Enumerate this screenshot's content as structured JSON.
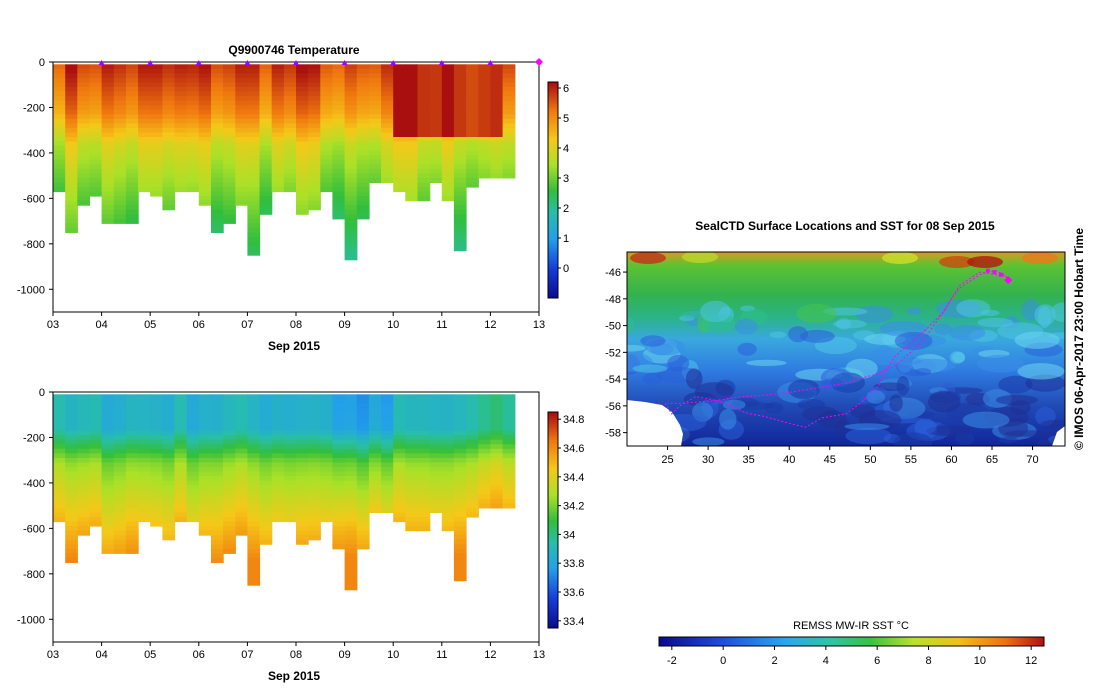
{
  "chart_data": [
    {
      "type": "heatmap",
      "title": "Q9900746  Temperature",
      "xlabel": "Sep 2015",
      "ylabel": "",
      "x_range": [
        3,
        13
      ],
      "x_ticks": [
        "03",
        "04",
        "05",
        "06",
        "07",
        "08",
        "09",
        "10",
        "11",
        "12",
        "13"
      ],
      "y_range": [
        -1100,
        0
      ],
      "y_ticks": [
        0,
        -200,
        -400,
        -600,
        -800,
        -1000
      ],
      "y_tick_labels": [
        "0",
        "-200",
        "-400",
        "-600",
        "-800",
        "-1000"
      ],
      "colorbar": {
        "min": -1,
        "max": 6.2,
        "ticks": [
          0,
          1,
          2,
          3,
          4,
          5,
          6
        ],
        "tick_labels": [
          "0",
          "1",
          "2",
          "3",
          "4",
          "5",
          "6"
        ]
      },
      "profile_times": [
        3.0,
        3.25,
        3.5,
        3.75,
        4.0,
        4.25,
        4.5,
        4.75,
        5.0,
        5.25,
        5.5,
        5.75,
        6.0,
        6.25,
        6.5,
        6.75,
        7.0,
        7.25,
        7.5,
        7.75,
        8.0,
        8.25,
        8.5,
        8.75,
        9.0,
        9.25,
        9.5,
        9.75,
        10.0,
        10.25,
        10.5,
        10.75,
        11.0,
        11.25,
        11.5,
        11.75,
        12.0,
        12.25
      ],
      "profile_bottom_depths": [
        -570,
        -740,
        -620,
        -590,
        -700,
        -700,
        -705,
        -560,
        -580,
        -650,
        -560,
        -570,
        -620,
        -740,
        -700,
        -620,
        -835,
        -660,
        -570,
        -570,
        -660,
        -650,
        -570,
        -690,
        -870,
        -690,
        -530,
        -520,
        -560,
        -600,
        -600,
        -530,
        -600,
        -820,
        -550,
        -510,
        -510,
        -510
      ],
      "surface_markers": [
        4,
        5,
        6,
        7,
        8,
        9,
        10,
        11,
        12,
        13
      ],
      "surface_marker_times": [
        4,
        5,
        6,
        7,
        8,
        9,
        10,
        11,
        12
      ],
      "surface_marker_last": 13
    },
    {
      "type": "heatmap",
      "title": "",
      "xlabel": "Sep 2015",
      "ylabel": "",
      "x_range": [
        3,
        13
      ],
      "x_ticks": [
        "03",
        "04",
        "05",
        "06",
        "07",
        "08",
        "09",
        "10",
        "11",
        "12",
        "13"
      ],
      "y_range": [
        -1100,
        0
      ],
      "y_ticks": [
        0,
        -200,
        -400,
        -600,
        -800,
        -1000
      ],
      "y_tick_labels": [
        "0",
        "-200",
        "-400",
        "-600",
        "-800",
        "-1000"
      ],
      "colorbar": {
        "min": 33.35,
        "max": 34.85,
        "ticks": [
          33.4,
          33.6,
          33.8,
          34,
          34.2,
          34.4,
          34.6,
          34.8
        ],
        "tick_labels": [
          "33.4",
          "33.6",
          "33.8",
          "34",
          "34.2",
          "34.4",
          "34.6",
          "34.8"
        ]
      }
    },
    {
      "type": "heatmap",
      "title": "SealCTD Surface Locations and SST for 08 Sep 2015",
      "xlabel": "",
      "ylabel": "",
      "x_range": [
        20,
        74
      ],
      "y_range": [
        -59,
        -44.5
      ],
      "x_ticks": [
        25,
        30,
        35,
        40,
        45,
        50,
        55,
        60,
        65,
        70
      ],
      "x_tick_labels": [
        "25",
        "30",
        "35",
        "40",
        "45",
        "50",
        "55",
        "60",
        "65",
        "70"
      ],
      "y_ticks": [
        -46,
        -48,
        -50,
        -52,
        -54,
        -56,
        -58
      ],
      "y_tick_labels": [
        "-46",
        "-48",
        "-50",
        "-52",
        "-54",
        "-56",
        "-58"
      ],
      "track_lon": [
        24.7,
        25.5,
        26.5,
        28.5,
        31,
        33,
        34.5,
        37,
        40,
        42,
        44,
        47,
        49,
        51,
        52,
        53,
        55,
        57,
        59,
        60,
        61,
        62.5,
        63.5,
        64.5,
        65.5,
        66.5,
        67,
        66.5,
        65.5,
        64.5,
        63.5,
        62.5,
        61,
        59,
        57,
        55,
        53,
        51,
        49,
        47.5,
        47,
        45,
        42,
        40,
        37,
        34.5,
        33,
        31,
        29,
        27,
        25
      ],
      "track_lat": [
        -55.8,
        -56.6,
        -56.0,
        -55.3,
        -55.6,
        -56.0,
        -56.5,
        -56.8,
        -57.3,
        -57.6,
        -56.9,
        -56.6,
        -55.7,
        -54.5,
        -53.3,
        -52.3,
        -51.3,
        -50.2,
        -49.0,
        -48.0,
        -47.2,
        -46.6,
        -46.2,
        -46.0,
        -45.9,
        -46.2,
        -46.5,
        -46.3,
        -46.2,
        -46.1,
        -46.0,
        -46.4,
        -47.0,
        -49.0,
        -50.7,
        -52.0,
        -53.0,
        -53.6,
        -53.9,
        -54.2,
        -54.3,
        -54.5,
        -54.8,
        -55.0,
        -55.2,
        -55.3,
        -55.4,
        -55.6,
        -55.7,
        -55.8,
        -55.8
      ],
      "markers_lon": [
        64.5,
        65.3,
        66.1,
        67.0
      ],
      "markers_lat": [
        -45.9,
        -46.0,
        -46.2,
        -46.6
      ],
      "last_marker_lon": 67.0,
      "last_marker_lat": -46.6,
      "colorbar": {
        "min": -2.5,
        "max": 12.5,
        "ticks": [
          -2,
          0,
          2,
          4,
          6,
          8,
          10,
          12
        ],
        "tick_labels": [
          "-2",
          "0",
          "2",
          "4",
          "6",
          "8",
          "10",
          "12"
        ],
        "label": "REMSS MW-IR SST °C"
      }
    }
  ],
  "side_label": "©  IMOS 06-Apr-2017 23:00 Hobart Time",
  "colors": {
    "track": "#ff00ff",
    "land": "#ffffff",
    "ocean_fallback": "#1f60e0"
  }
}
